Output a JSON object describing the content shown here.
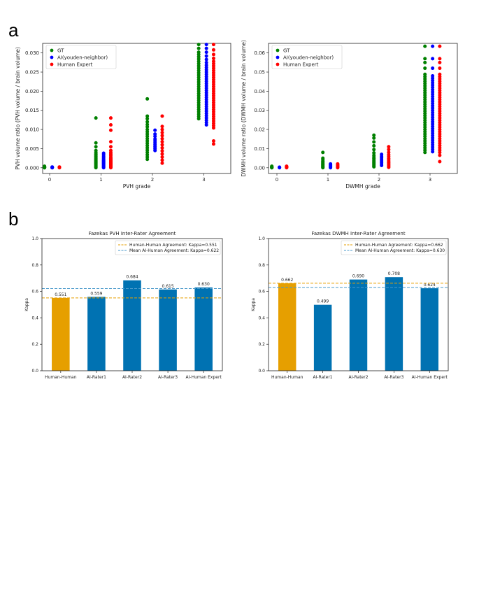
{
  "panels": {
    "a": "a",
    "b": "b"
  },
  "colors": {
    "gt": "#008000",
    "ai": "#0000ff",
    "human": "#ff0000",
    "hh_bar": "#e69f00",
    "ai_bar": "#0072b2",
    "hh_line": "#e69f00",
    "ai_line": "#4a9acb"
  },
  "chart_data": [
    {
      "type": "scatter",
      "xlabel": "PVH grade",
      "ylabel": "PVH volume ratio (PVH volume / brain volume)",
      "xticks": [
        "0",
        "1",
        "2",
        "3"
      ],
      "yticks": [
        "0.000",
        "0.005",
        "0.010",
        "0.015",
        "0.020",
        "0.025",
        "0.030"
      ],
      "ylim": [
        -0.0015,
        0.0325
      ],
      "legend": {
        "position": "top-left",
        "entries": [
          "GT",
          "AI(youden-neighbor)",
          "Human Expert"
        ]
      },
      "series": [
        {
          "name": "GT",
          "offset": -0.1,
          "points": {
            "0": [
              0,
              0,
              0.0001,
              0.0001,
              0.0002,
              0.0003,
              0.0004
            ],
            "1": [
              0,
              0.0002,
              0.0004,
              0.0006,
              0.0008,
              0.001,
              0.0012,
              0.0014,
              0.0016,
              0.0018,
              0.002,
              0.0022,
              0.0025,
              0.0028,
              0.003,
              0.0033,
              0.0036,
              0.004,
              0.0045,
              0.0055,
              0.0065,
              0.013
            ],
            "2": [
              0.0022,
              0.0028,
              0.0034,
              0.004,
              0.0046,
              0.0052,
              0.0058,
              0.0064,
              0.007,
              0.0076,
              0.0082,
              0.0088,
              0.0094,
              0.01,
              0.0107,
              0.0113,
              0.012,
              0.0128,
              0.0135,
              0.018
            ],
            "3": [
              0.0128,
              0.0134,
              0.014,
              0.0146,
              0.0152,
              0.0158,
              0.0164,
              0.017,
              0.0176,
              0.0182,
              0.0188,
              0.0194,
              0.02,
              0.0206,
              0.0212,
              0.0218,
              0.0224,
              0.023,
              0.0236,
              0.0242,
              0.0248,
              0.0254,
              0.026,
              0.0266,
              0.0272,
              0.0278,
              0.0284,
              0.029,
              0.0296,
              0.0302,
              0.0312,
              0.0322
            ]
          }
        },
        {
          "name": "AI(youden-neighbor)",
          "offset": 0.05,
          "points": {
            "0": [
              0,
              0,
              0.0001,
              0.0001,
              0.0002
            ],
            "1": [
              0,
              0.0002,
              0.0004,
              0.0006,
              0.0008,
              0.001,
              0.0012,
              0.0014,
              0.0016,
              0.0018,
              0.002,
              0.0023,
              0.0026,
              0.003,
              0.0034,
              0.0038
            ],
            "2": [
              0.0045,
              0.005,
              0.0055,
              0.006,
              0.0065,
              0.007,
              0.0075,
              0.0082,
              0.0088,
              0.0098
            ],
            "3": [
              0.0112,
              0.0118,
              0.0124,
              0.013,
              0.0136,
              0.0142,
              0.0148,
              0.0154,
              0.016,
              0.0166,
              0.0172,
              0.0178,
              0.0184,
              0.019,
              0.0196,
              0.0202,
              0.0208,
              0.0214,
              0.022,
              0.0226,
              0.0232,
              0.0238,
              0.0244,
              0.025,
              0.0256,
              0.0262,
              0.0268,
              0.0275,
              0.0283,
              0.0292,
              0.0302,
              0.0312,
              0.0322
            ]
          }
        },
        {
          "name": "Human Expert",
          "offset": 0.19,
          "points": {
            "0": [
              0,
              0.0001,
              0.0001,
              0.0002
            ],
            "1": [
              0,
              0.0002,
              0.0004,
              0.0006,
              0.0008,
              0.001,
              0.0012,
              0.0014,
              0.0016,
              0.0018,
              0.002,
              0.0022,
              0.0025,
              0.0028,
              0.0032,
              0.0036,
              0.004,
              0.0045,
              0.0055,
              0.0068,
              0.0098,
              0.0112,
              0.013
            ],
            "2": [
              0.0012,
              0.002,
              0.0028,
              0.0036,
              0.0044,
              0.0052,
              0.006,
              0.0068,
              0.0076,
              0.0084,
              0.0092,
              0.01,
              0.0108,
              0.0135
            ],
            "3": [
              0.0062,
              0.007,
              0.0104,
              0.011,
              0.0116,
              0.0122,
              0.0128,
              0.0134,
              0.014,
              0.0146,
              0.0152,
              0.0158,
              0.0164,
              0.017,
              0.0176,
              0.0182,
              0.0188,
              0.0194,
              0.02,
              0.0206,
              0.0212,
              0.0218,
              0.0224,
              0.023,
              0.0236,
              0.0242,
              0.0248,
              0.0254,
              0.026,
              0.0266,
              0.0272,
              0.0278,
              0.0286,
              0.0296,
              0.0308,
              0.0322
            ]
          }
        }
      ]
    },
    {
      "type": "scatter",
      "xlabel": "DWMH grade",
      "ylabel": "DWMH volume ratio (DWMH volume / brain volume)",
      "xticks": [
        "0",
        "1",
        "2",
        "3"
      ],
      "yticks": [
        "0.00",
        "0.01",
        "0.02",
        "0.03",
        "0.04",
        "0.05",
        "0.06"
      ],
      "ylim": [
        -0.003,
        0.065
      ],
      "legend": {
        "position": "top-left",
        "entries": [
          "GT",
          "AI(youden-neighbor)",
          "Human Expert"
        ]
      },
      "series": [
        {
          "name": "GT",
          "offset": -0.1,
          "points": {
            "0": [
              0,
              0,
              0.0002,
              0.0004,
              0.0006,
              0.0008
            ],
            "1": [
              0,
              0.0004,
              0.0008,
              0.0012,
              0.0016,
              0.002,
              0.0025,
              0.003,
              0.0035,
              0.0042,
              0.005,
              0.008
            ],
            "2": [
              0.0005,
              0.001,
              0.0016,
              0.0022,
              0.0028,
              0.0034,
              0.004,
              0.0048,
              0.0056,
              0.0065,
              0.0078,
              0.0095,
              0.0115,
              0.0135,
              0.0155,
              0.017
            ],
            "3": [
              0.008,
              0.0092,
              0.0104,
              0.0116,
              0.0128,
              0.014,
              0.0152,
              0.0164,
              0.0176,
              0.0188,
              0.02,
              0.0212,
              0.0224,
              0.0236,
              0.0248,
              0.026,
              0.0272,
              0.0284,
              0.0296,
              0.0308,
              0.032,
              0.0332,
              0.0344,
              0.0356,
              0.0368,
              0.038,
              0.0392,
              0.0404,
              0.0416,
              0.0428,
              0.044,
              0.0452,
              0.0464,
              0.0476,
              0.0488,
              0.052,
              0.055,
              0.057,
              0.0635
            ]
          }
        },
        {
          "name": "AI(youden-neighbor)",
          "offset": 0.05,
          "points": {
            "0": [
              0,
              0.0002,
              0.0003
            ],
            "1": [
              0,
              0.0004,
              0.0008,
              0.0012,
              0.0016,
              0.002
            ],
            "2": [
              0.0012,
              0.002,
              0.0028,
              0.0036,
              0.0044,
              0.0052,
              0.006,
              0.007
            ],
            "3": [
              0.0084,
              0.0096,
              0.0108,
              0.012,
              0.0132,
              0.0144,
              0.0156,
              0.0168,
              0.018,
              0.0192,
              0.0204,
              0.0216,
              0.0228,
              0.024,
              0.0252,
              0.0264,
              0.0276,
              0.0288,
              0.03,
              0.0312,
              0.0324,
              0.0336,
              0.0348,
              0.036,
              0.0372,
              0.0384,
              0.0396,
              0.0408,
              0.042,
              0.0432,
              0.0444,
              0.0456,
              0.0468,
              0.048,
              0.052,
              0.057,
              0.0635
            ]
          }
        },
        {
          "name": "Human Expert",
          "offset": 0.19,
          "points": {
            "0": [
              0,
              0.0002,
              0.0004,
              0.0006,
              0.0008
            ],
            "1": [
              0,
              0.0004,
              0.0008,
              0.0012,
              0.0016,
              0.002
            ],
            "2": [
              0.0002,
              0.0008,
              0.0014,
              0.002,
              0.0026,
              0.0032,
              0.004,
              0.0048,
              0.0058,
              0.0068,
              0.008,
              0.0095,
              0.011
            ],
            "3": [
              0.0032,
              0.0065,
              0.008,
              0.0092,
              0.0104,
              0.0116,
              0.0128,
              0.014,
              0.0152,
              0.0164,
              0.0176,
              0.0188,
              0.02,
              0.0212,
              0.0224,
              0.0236,
              0.0248,
              0.026,
              0.0272,
              0.0284,
              0.0296,
              0.0308,
              0.032,
              0.0332,
              0.0344,
              0.0356,
              0.0368,
              0.038,
              0.0392,
              0.0404,
              0.0416,
              0.0428,
              0.044,
              0.0452,
              0.0464,
              0.0476,
              0.0488,
              0.052,
              0.055,
              0.057,
              0.0635
            ]
          }
        }
      ]
    },
    {
      "type": "bar",
      "title": "Fazekas PVH Inter-Rater Agreement",
      "ylabel": "Kappa",
      "ylim": [
        0,
        1.0
      ],
      "yticks": [
        "0.0",
        "0.2",
        "0.4",
        "0.6",
        "0.8",
        "1.0"
      ],
      "categories": [
        "Human-Human",
        "AI-Rater1",
        "AI-Rater2",
        "AI-Rater3",
        "AI-Human Expert"
      ],
      "values": [
        0.551,
        0.559,
        0.684,
        0.615,
        0.63
      ],
      "value_labels": [
        "0.551",
        "0.559",
        "0.684",
        "0.615",
        "0.630"
      ],
      "bar_colors": [
        "hh",
        "ai",
        "ai",
        "ai",
        "ai"
      ],
      "hlines": [
        {
          "label": "Human-Human Agreement:  Kappa=0.551",
          "value": 0.551,
          "color": "hh_line"
        },
        {
          "label": "Mean AI-Human Agreement: Kappa=0.622",
          "value": 0.622,
          "color": "ai_line"
        }
      ],
      "legend": {
        "position": "top-right"
      }
    },
    {
      "type": "bar",
      "title": "Fazekas DWMH Inter-Rater Agreement",
      "ylabel": "Kappa",
      "ylim": [
        0,
        1.0
      ],
      "yticks": [
        "0.0",
        "0.2",
        "0.4",
        "0.6",
        "0.8",
        "1.0"
      ],
      "categories": [
        "Human-Human",
        "AI-Rater1",
        "AI-Rater2",
        "AI-Rater3",
        "AI-Human Expert"
      ],
      "values": [
        0.662,
        0.499,
        0.69,
        0.708,
        0.624
      ],
      "value_labels": [
        "0.662",
        "0.499",
        "0.690",
        "0.708",
        "0.624"
      ],
      "bar_colors": [
        "hh",
        "ai",
        "ai",
        "ai",
        "ai"
      ],
      "hlines": [
        {
          "label": "Human-Human Agreement:  Kappa=0.662",
          "value": 0.662,
          "color": "hh_line"
        },
        {
          "label": "Mean AI-Human Agreement: Kappa=0.630",
          "value": 0.63,
          "color": "ai_line"
        }
      ],
      "legend": {
        "position": "top-right"
      }
    }
  ]
}
